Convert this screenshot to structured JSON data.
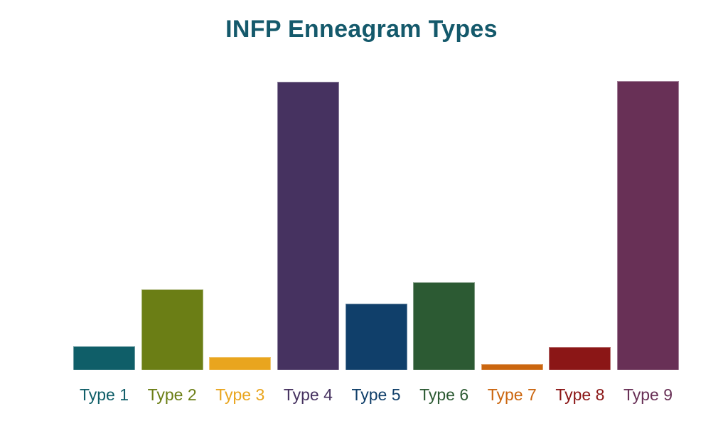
{
  "chart_data": {
    "type": "bar",
    "title": "INFP Enneagram Types",
    "title_color": "#14596B",
    "categories": [
      "Type 1",
      "Type 2",
      "Type 3",
      "Type 4",
      "Type 5",
      "Type 6",
      "Type 7",
      "Type 8",
      "Type 9"
    ],
    "values": [
      8.1,
      27.8,
      4.4,
      99.8,
      22.9,
      30.3,
      2.0,
      7.9,
      100
    ],
    "unit": "relative bar height, tallest bar = 100 (no y-axis shown in chart)",
    "bar_colors": [
      "#0F5E68",
      "#6B7E15",
      "#E9A51E",
      "#463260",
      "#103F6A",
      "#2C5A33",
      "#CB660F",
      "#8B1616",
      "#683056"
    ],
    "label_colors": [
      "#0F5E68",
      "#6B7E15",
      "#E9A51E",
      "#463260",
      "#103F6A",
      "#2C5A33",
      "#CB660F",
      "#8B1616",
      "#683056"
    ],
    "xlabel": "",
    "ylabel": "",
    "axes_visible": false,
    "grid": false,
    "legend": false,
    "background_color": "#FFFFFF"
  }
}
